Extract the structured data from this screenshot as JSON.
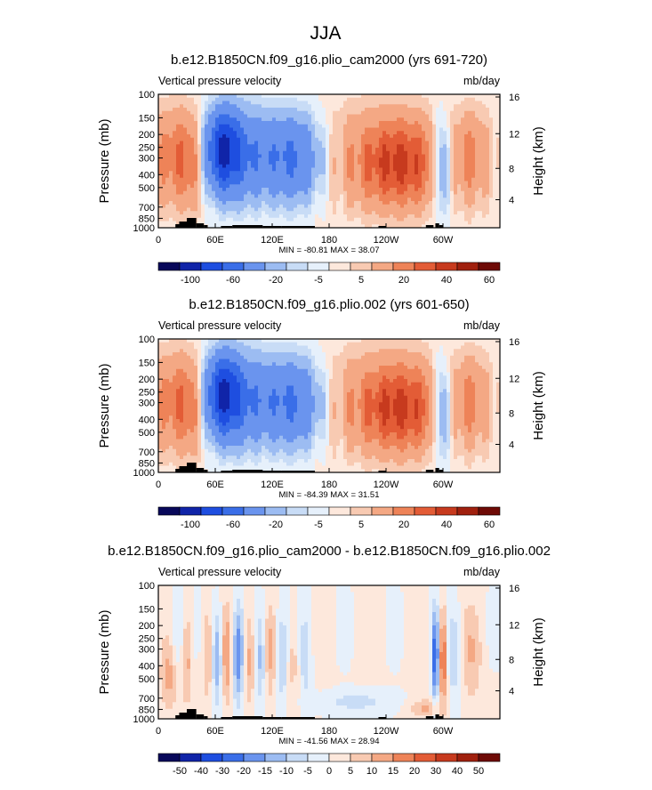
{
  "figure": {
    "title": "JJA"
  },
  "chart_data": [
    {
      "type": "heatmap",
      "title": "b.e12.B1850CN.f09_g16.plio_cam2000 (yrs 691-720)",
      "left_label": "Vertical pressure velocity",
      "right_label": "mb/day",
      "ylabel": "Pressure (mb)",
      "ylabel_right": "Height (km)",
      "x_ticks": [
        "0",
        "60E",
        "120E",
        "180",
        "120W",
        "60W"
      ],
      "y_ticks": [
        "100",
        "150",
        "200",
        "250",
        "300",
        "400",
        "500",
        "700",
        "850",
        "1000"
      ],
      "height_ticks": [
        "16",
        "12",
        "8",
        "4"
      ],
      "stats": "MIN = -80.81   MAX =  38.07",
      "colorbar": {
        "labels": [
          "-100",
          "-60",
          "-20",
          "-5",
          "5",
          "20",
          "40",
          "60"
        ],
        "colors": [
          "#08085a",
          "#1024a8",
          "#1e4ee0",
          "#3a6ee8",
          "#6a94ee",
          "#9cbcf2",
          "#c8dcf6",
          "#e6f0fb",
          "#fde8dc",
          "#f8cab2",
          "#f4a884",
          "#ee8358",
          "#e35c36",
          "#c73a1e",
          "#a0200e",
          "#6e0a06"
        ]
      },
      "pattern": "mean"
    },
    {
      "type": "heatmap",
      "title": "b.e12.B1850CN.f09_g16.plio.002 (yrs 601-650)",
      "left_label": "Vertical pressure velocity",
      "right_label": "mb/day",
      "ylabel": "Pressure (mb)",
      "ylabel_right": "Height (km)",
      "x_ticks": [
        "0",
        "60E",
        "120E",
        "180",
        "120W",
        "60W"
      ],
      "y_ticks": [
        "100",
        "150",
        "200",
        "250",
        "300",
        "400",
        "500",
        "700",
        "850",
        "1000"
      ],
      "height_ticks": [
        "16",
        "12",
        "8",
        "4"
      ],
      "stats": "MIN = -84.39   MAX =  31.51",
      "colorbar": {
        "labels": [
          "-100",
          "-60",
          "-20",
          "-5",
          "5",
          "20",
          "40",
          "60"
        ],
        "colors": [
          "#08085a",
          "#1024a8",
          "#1e4ee0",
          "#3a6ee8",
          "#6a94ee",
          "#9cbcf2",
          "#c8dcf6",
          "#e6f0fb",
          "#fde8dc",
          "#f8cab2",
          "#f4a884",
          "#ee8358",
          "#e35c36",
          "#c73a1e",
          "#a0200e",
          "#6e0a06"
        ]
      },
      "pattern": "mean"
    },
    {
      "type": "heatmap",
      "title": "b.e12.B1850CN.f09_g16.plio_cam2000 - b.e12.B1850CN.f09_g16.plio.002",
      "left_label": "Vertical pressure velocity",
      "right_label": "mb/day",
      "ylabel": "Pressure (mb)",
      "ylabel_right": "Height (km)",
      "x_ticks": [
        "0",
        "60E",
        "120E",
        "180",
        "120W",
        "60W"
      ],
      "y_ticks": [
        "100",
        "150",
        "200",
        "250",
        "300",
        "400",
        "500",
        "700",
        "850",
        "1000"
      ],
      "height_ticks": [
        "16",
        "12",
        "8",
        "4"
      ],
      "stats": "MIN = -41.56   MAX =  28.94",
      "colorbar": {
        "labels": [
          "-50",
          "-40",
          "-30",
          "-20",
          "-15",
          "-10",
          "-5",
          "0",
          "5",
          "10",
          "15",
          "20",
          "30",
          "40",
          "50"
        ],
        "colors": [
          "#08085a",
          "#1024a8",
          "#1e4ee0",
          "#3a6ee8",
          "#6a94ee",
          "#9cbcf2",
          "#c8dcf6",
          "#e6f0fb",
          "#fde8dc",
          "#f8cab2",
          "#f4a884",
          "#ee8358",
          "#e35c36",
          "#c73a1e",
          "#a0200e",
          "#6e0a06"
        ]
      },
      "pattern": "diff"
    }
  ]
}
